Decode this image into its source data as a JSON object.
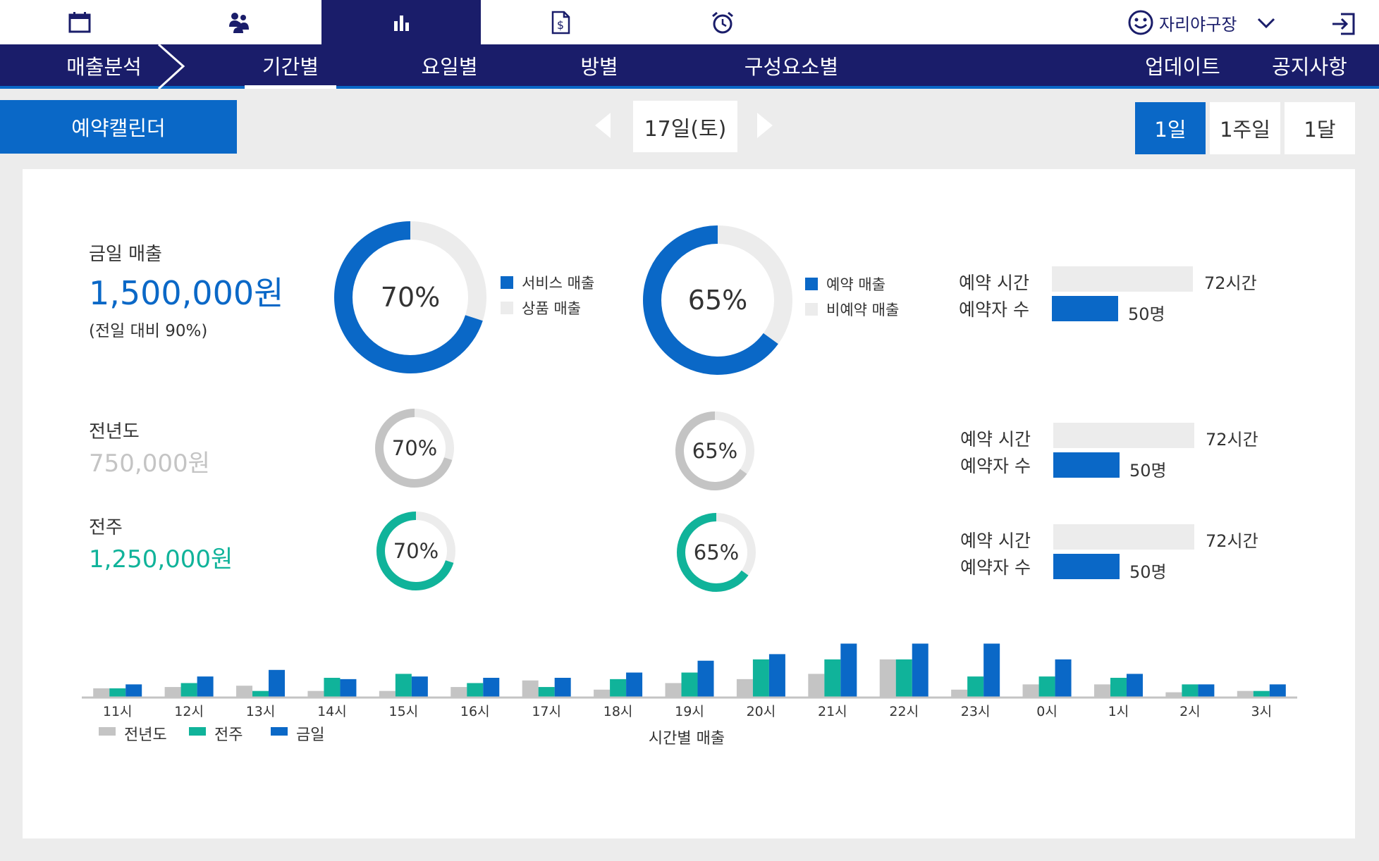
{
  "header": {
    "tabs": [
      {
        "icon": "calendar-icon"
      },
      {
        "icon": "customers-icon"
      },
      {
        "icon": "bar-chart-icon",
        "active": true
      },
      {
        "icon": "invoice-icon"
      },
      {
        "icon": "alarm-clock-icon"
      }
    ],
    "user_name": "자리야구장"
  },
  "nav": {
    "section": "매출분석",
    "items": [
      "기간별",
      "요일별",
      "방별",
      "구성요소별"
    ],
    "right_items": [
      "업데이트",
      "공지사항"
    ]
  },
  "toolbar": {
    "calendar_label": "예약캘린더",
    "date": "17일(토)",
    "ranges": [
      "1일",
      "1주일",
      "1달"
    ]
  },
  "today": {
    "label": "금일 매출",
    "amount": "1,500,000원",
    "compare": "(전일 대비 90%)",
    "service_pct": "70%",
    "reserve_pct": "65%",
    "legend_service": [
      "서비스 매출",
      "상품 매출"
    ],
    "legend_reserve": [
      "예약 매출",
      "비예약 매출"
    ],
    "stat_time_label": "예약 시간",
    "stat_people_label": "예약자 수",
    "stat_time": "72시간",
    "stat_people": "50명"
  },
  "last_year": {
    "label": "전년도",
    "amount": "750,000원",
    "service_pct": "70%",
    "reserve_pct": "65%",
    "stat_time_label": "예약 시간",
    "stat_people_label": "예약자 수",
    "stat_time": "72시간",
    "stat_people": "50명"
  },
  "last_week": {
    "label": "전주",
    "amount": "1,250,000원",
    "service_pct": "70%",
    "reserve_pct": "65%",
    "stat_time_label": "예약 시간",
    "stat_people_label": "예약자 수",
    "stat_time": "72시간",
    "stat_people": "50명"
  },
  "colors": {
    "navy": "#1a1d6a",
    "blue": "#0a68c7",
    "teal": "#10b39a",
    "gray": "#c4c4c4",
    "light": "#ececec"
  },
  "chart_data": {
    "type": "bar",
    "title": "",
    "xlabel": "시간별 매출",
    "ylabel": "",
    "categories": [
      "11시",
      "12시",
      "13시",
      "14시",
      "15시",
      "16시",
      "17시",
      "18시",
      "19시",
      "20시",
      "21시",
      "22시",
      "23시",
      "0시",
      "1시",
      "2시",
      "3시"
    ],
    "series": [
      {
        "name": "전년도",
        "color": "#c4c4c4",
        "values": [
          14,
          16,
          18,
          10,
          10,
          16,
          26,
          12,
          22,
          28,
          36,
          58,
          12,
          20,
          20,
          8,
          10
        ]
      },
      {
        "name": "전주",
        "color": "#10b39a",
        "values": [
          14,
          22,
          10,
          30,
          36,
          22,
          16,
          28,
          38,
          58,
          58,
          58,
          32,
          32,
          30,
          20,
          10
        ]
      },
      {
        "name": "금일",
        "color": "#0a68c7",
        "values": [
          20,
          32,
          42,
          28,
          32,
          30,
          30,
          38,
          56,
          66,
          82,
          82,
          82,
          58,
          36,
          20,
          20
        ]
      }
    ],
    "ylim": [
      0,
      90
    ],
    "grid": false,
    "legend": "bottom-left"
  }
}
